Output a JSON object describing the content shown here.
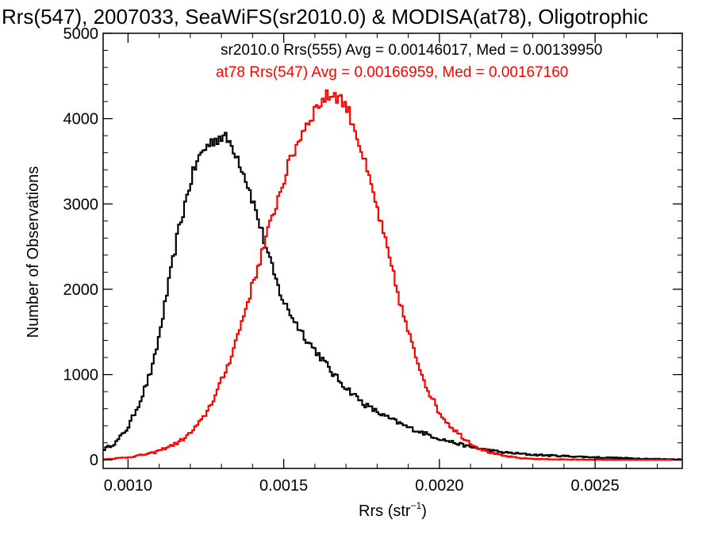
{
  "chart_data": {
    "type": "line",
    "title": "Rrs(547), 2007033, SeaWiFS(sr2010.0) & MODISA(at78), Oligotrophic",
    "xlabel_main": "Rrs (str",
    "xlabel_sup": "−1",
    "xlabel_end": ")",
    "ylabel": "Number of Observations",
    "xlim": [
      0.00092,
      0.00278
    ],
    "ylim": [
      -100,
      5000
    ],
    "xticks": [
      0.001,
      0.0015,
      0.002,
      0.0025
    ],
    "xtick_labels": [
      "0.0010",
      "0.0015",
      "0.0020",
      "0.0025"
    ],
    "yticks": [
      0,
      1000,
      2000,
      3000,
      4000,
      5000
    ],
    "ytick_labels": [
      "0",
      "1000",
      "2000",
      "3000",
      "4000",
      "5000"
    ],
    "grid": false,
    "annotations": [
      {
        "text": "sr2010.0 Rrs(555) Avg = 0.00146017, Med = 0.00139950",
        "color": "#000000"
      },
      {
        "text": "at78 Rrs(547) Avg = 0.00166959, Med = 0.00167160",
        "color": "#ff0000"
      }
    ],
    "series": [
      {
        "color": "#000000",
        "x": [
          0.00092,
          0.00096,
          0.001,
          0.00104,
          0.00108,
          0.0011,
          0.00112,
          0.00114,
          0.00116,
          0.00118,
          0.0012,
          0.00122,
          0.00124,
          0.00126,
          0.00128,
          0.0013,
          0.00132,
          0.00134,
          0.00136,
          0.00138,
          0.0014,
          0.00142,
          0.00144,
          0.00146,
          0.00148,
          0.0015,
          0.00154,
          0.00158,
          0.00162,
          0.00166,
          0.0017,
          0.00176,
          0.00182,
          0.0019,
          0.002,
          0.0021,
          0.0022,
          0.0023,
          0.0024,
          0.0025,
          0.0026,
          0.0027,
          0.00278
        ],
        "y": [
          120,
          200,
          380,
          700,
          1100,
          1450,
          1850,
          2250,
          2650,
          2950,
          3250,
          3480,
          3620,
          3700,
          3760,
          3790,
          3750,
          3650,
          3480,
          3280,
          3050,
          2800,
          2540,
          2280,
          2050,
          1850,
          1600,
          1380,
          1200,
          1000,
          850,
          650,
          520,
          380,
          250,
          150,
          90,
          60,
          45,
          30,
          20,
          10,
          5
        ]
      },
      {
        "color": "#ff0000",
        "x": [
          0.00092,
          0.001,
          0.00108,
          0.00116,
          0.0012,
          0.00124,
          0.00128,
          0.00132,
          0.00136,
          0.0014,
          0.00144,
          0.00148,
          0.00152,
          0.00156,
          0.0016,
          0.00162,
          0.00164,
          0.00166,
          0.00168,
          0.0017,
          0.00172,
          0.00174,
          0.00176,
          0.0018,
          0.00184,
          0.00188,
          0.00192,
          0.00196,
          0.002,
          0.00204,
          0.00208,
          0.00212,
          0.00216,
          0.0022,
          0.00226,
          0.00232,
          0.0024,
          0.0025,
          0.0026,
          0.0027,
          0.00278
        ],
        "y": [
          5,
          30,
          80,
          200,
          310,
          480,
          750,
          1100,
          1550,
          2050,
          2550,
          3050,
          3500,
          3850,
          4100,
          4200,
          4260,
          4290,
          4250,
          4150,
          3980,
          3750,
          3480,
          2950,
          2350,
          1750,
          1250,
          850,
          550,
          380,
          250,
          150,
          90,
          50,
          20,
          10,
          5,
          2,
          1,
          0,
          0
        ]
      }
    ]
  }
}
